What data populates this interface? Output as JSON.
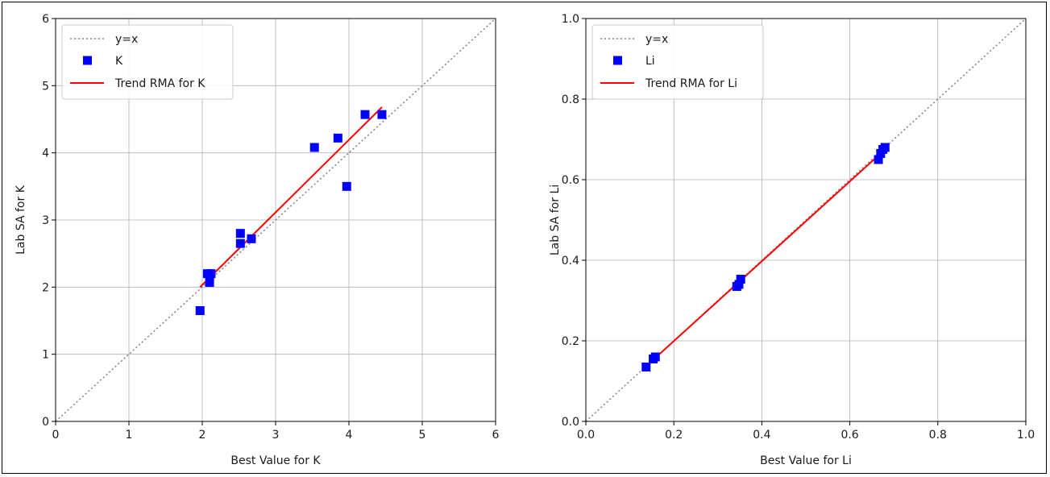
{
  "chart_data": [
    {
      "type": "scatter",
      "xlabel": "Best Value for K",
      "ylabel": "Lab SA for K",
      "xlim": [
        0,
        6
      ],
      "ylim": [
        0,
        6
      ],
      "xticks": [
        "0",
        "1",
        "2",
        "3",
        "4",
        "5",
        "6"
      ],
      "yticks": [
        "0",
        "1",
        "2",
        "3",
        "4",
        "5",
        "6"
      ],
      "grid": true,
      "legend_position": "top-left",
      "legend": [
        "y=x",
        "K",
        "Trend RMA for K"
      ],
      "reference_line": {
        "name": "y=x",
        "style": "dotted",
        "color": "#808080"
      },
      "series": [
        {
          "name": "K",
          "marker": "square",
          "color": "#0000ff",
          "x": [
            1.97,
            2.07,
            2.1,
            2.12,
            2.52,
            2.52,
            2.67,
            3.53,
            3.85,
            3.97,
            4.22,
            4.45
          ],
          "y": [
            1.65,
            2.2,
            2.07,
            2.2,
            2.65,
            2.8,
            2.72,
            4.08,
            4.22,
            3.5,
            4.57,
            4.57
          ]
        }
      ],
      "trend": {
        "name": "Trend RMA for K",
        "color": "#ff0000",
        "x": [
          1.97,
          4.45
        ],
        "y": [
          2.0,
          4.68
        ]
      }
    },
    {
      "type": "scatter",
      "xlabel": "Best Value for  Li",
      "ylabel": "Lab SA for Li",
      "xlim": [
        0,
        1
      ],
      "ylim": [
        0,
        1
      ],
      "xticks": [
        "0.0",
        "0.2",
        "0.4",
        "0.6",
        "0.8",
        "1.0"
      ],
      "yticks": [
        "0.0",
        "0.2",
        "0.4",
        "0.6",
        "0.8",
        "1.0"
      ],
      "grid": true,
      "legend_position": "top-left",
      "legend": [
        "y=x",
        "Li",
        "Trend RMA for Li"
      ],
      "reference_line": {
        "name": "y=x",
        "style": "dotted",
        "color": "#808080"
      },
      "series": [
        {
          "name": "Li",
          "marker": "square",
          "color": "#0000ff",
          "x": [
            0.137,
            0.153,
            0.158,
            0.343,
            0.348,
            0.352,
            0.665,
            0.67,
            0.675,
            0.68
          ],
          "y": [
            0.135,
            0.155,
            0.16,
            0.335,
            0.34,
            0.353,
            0.65,
            0.665,
            0.675,
            0.68
          ]
        }
      ],
      "trend": {
        "name": "Trend RMA for Li",
        "color": "#ff0000",
        "x": [
          0.137,
          0.68
        ],
        "y": [
          0.137,
          0.675
        ]
      }
    }
  ]
}
